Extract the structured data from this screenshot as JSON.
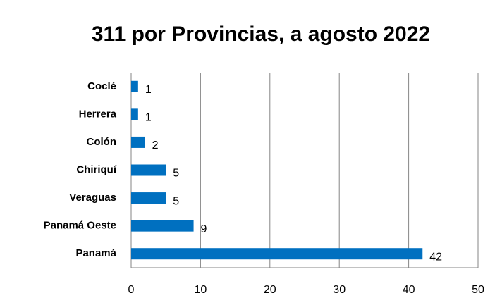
{
  "chart_data": {
    "type": "bar",
    "orientation": "horizontal",
    "title": "311 por Provincias, a agosto 2022",
    "categories": [
      "Coclé",
      "Herrera",
      "Colón",
      "Chiriquí",
      "Veraguas",
      "Panamá Oeste",
      "Panamá"
    ],
    "values": [
      1,
      1,
      2,
      5,
      5,
      9,
      42
    ],
    "color": "#0070c0",
    "xlim": [
      0,
      50
    ],
    "xticks": [
      0,
      10,
      20,
      30,
      40,
      50
    ],
    "grid": true
  }
}
